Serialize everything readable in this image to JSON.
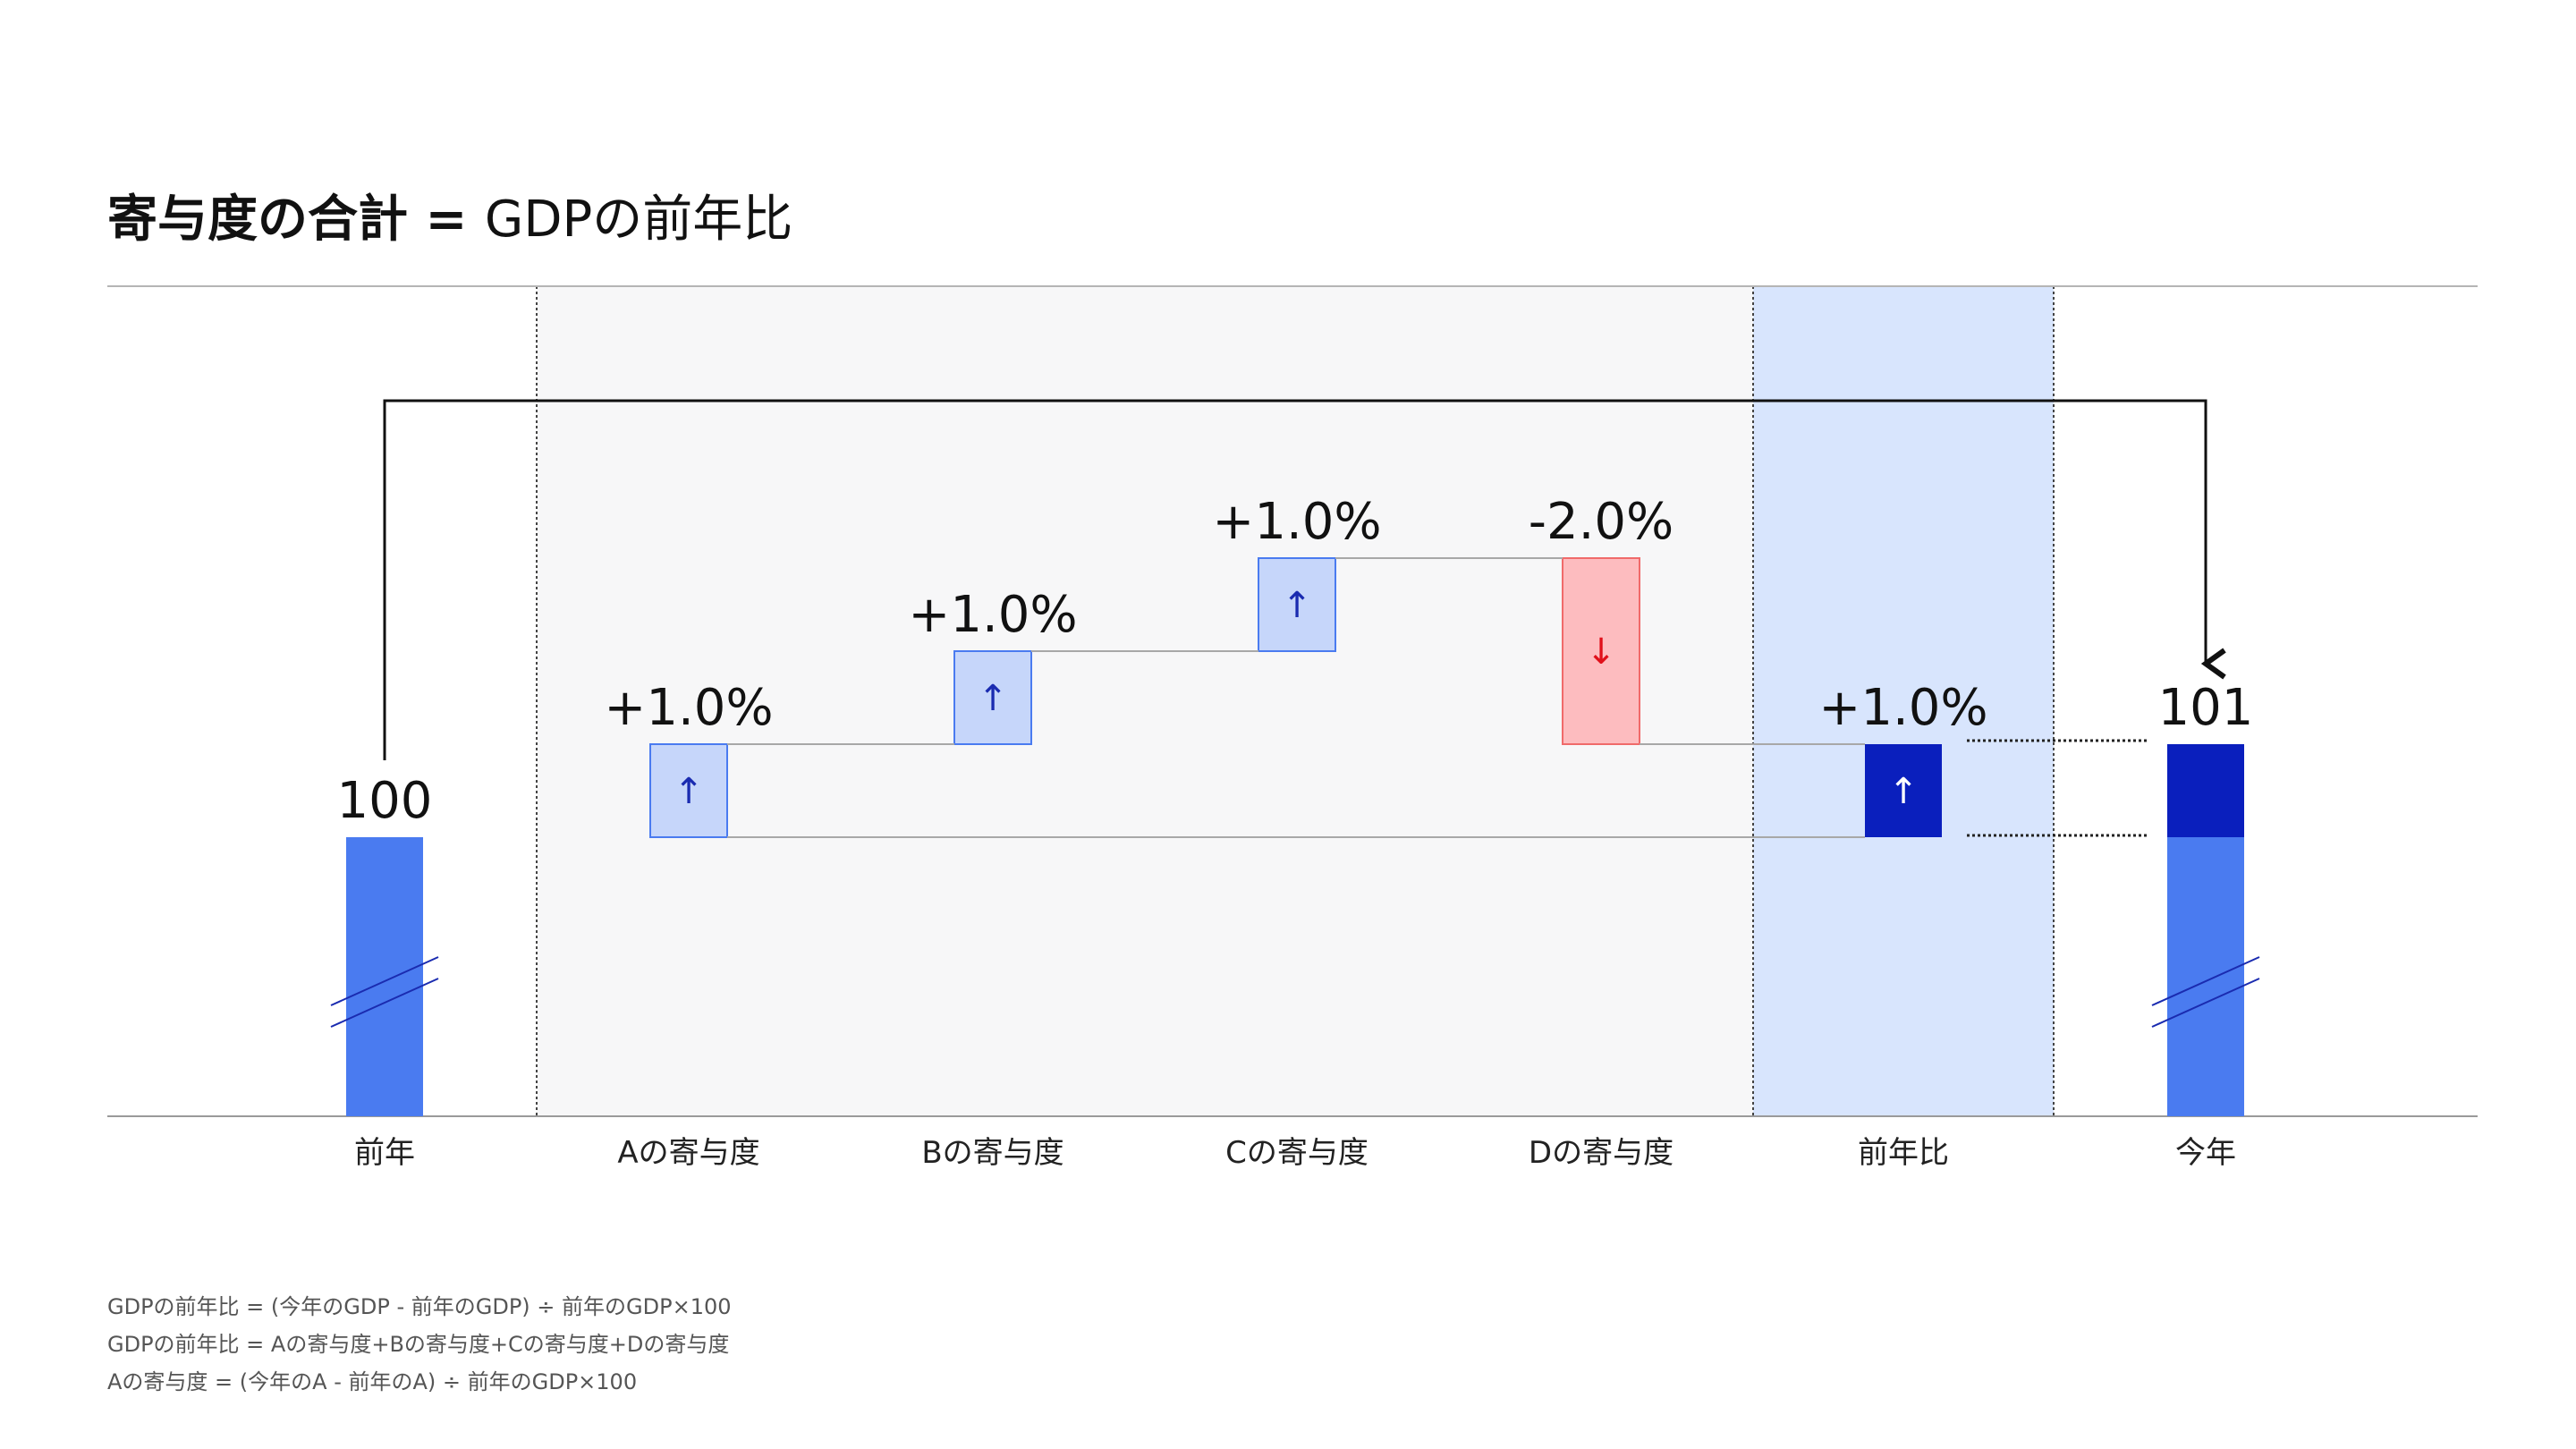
{
  "title": {
    "bold": "寄与度の合計 = ",
    "rest": "GDPの前年比"
  },
  "chart_data": {
    "type": "waterfall",
    "title": "寄与度の合計 = GDPの前年比",
    "categories": [
      "前年",
      "Aの寄与度",
      "Bの寄与度",
      "Cの寄与度",
      "Dの寄与度",
      "前年比",
      "今年"
    ],
    "base_value": 100,
    "final_value": 101,
    "base_label": "100",
    "final_label": "101",
    "contributions": [
      {
        "name": "Aの寄与度",
        "value": 1.0,
        "label": "+1.0%",
        "arrow": "↑"
      },
      {
        "name": "Bの寄与度",
        "value": 1.0,
        "label": "+1.0%",
        "arrow": "↑"
      },
      {
        "name": "Cの寄与度",
        "value": 1.0,
        "label": "+1.0%",
        "arrow": "↑"
      },
      {
        "name": "Dの寄与度",
        "value": -2.0,
        "label": "-2.0%",
        "arrow": "↓"
      }
    ],
    "yoy": {
      "name": "前年比",
      "value": 1.0,
      "label": "+1.0%",
      "arrow": "↑"
    }
  },
  "colors": {
    "base_bar": "#4a7bf0",
    "final_bar_top": "#0a1fbd",
    "pos_fill": "#c6d6fa",
    "pos_stroke": "#4a7bf0",
    "neg_fill": "#fdbcbf",
    "neg_stroke": "#f06a6a",
    "arrow_pos": "#1a2bb0",
    "arrow_neg": "#e0101a",
    "contrib_region": "#f7f7f8",
    "yoy_region": "#d8e5fd"
  },
  "notes": [
    "GDPの前年比 = (今年のGDP - 前年のGDP) ÷ 前年のGDP×100",
    "GDPの前年比 = Aの寄与度+Bの寄与度+Cの寄与度+Dの寄与度",
    "Aの寄与度 = (今年のA - 前年のA) ÷ 前年のGDP×100"
  ]
}
